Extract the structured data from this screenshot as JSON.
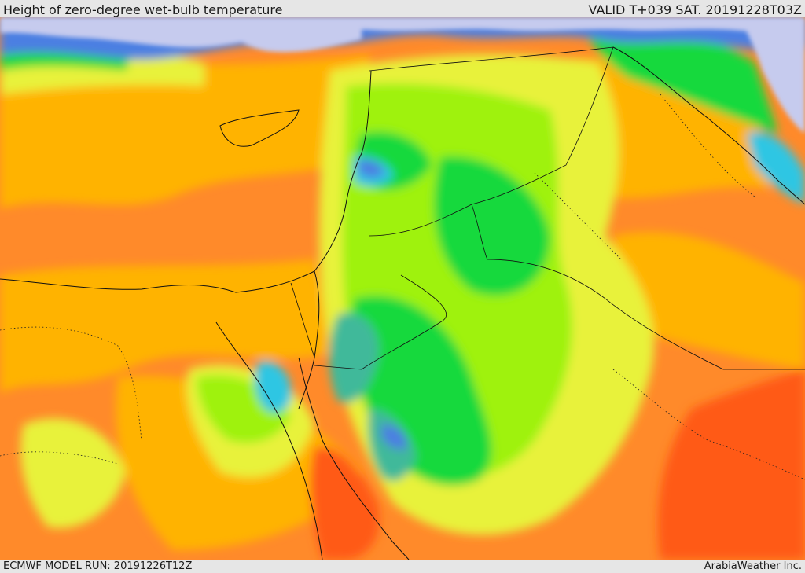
{
  "header": {
    "title": "Height of zero-degree wet-bulb temperature",
    "valid": "VALID T+039 SAT. 20191228T03Z"
  },
  "footer": {
    "model_run": "ECMWF MODEL RUN: 20191226T12Z",
    "credit": "ArabiaWeather Inc."
  },
  "palette": {
    "sea_lavender": "#c6cbee",
    "violet": "#8a83d8",
    "blue": "#4c7fe2",
    "cyan": "#2ec6e3",
    "teal": "#3fb99a",
    "green": "#17d93e",
    "light_green": "#9ff20f",
    "yellow_green": "#e8f23a",
    "amber": "#ffb300",
    "orange": "#ff8a2a",
    "red_orange": "#ff5a14"
  }
}
